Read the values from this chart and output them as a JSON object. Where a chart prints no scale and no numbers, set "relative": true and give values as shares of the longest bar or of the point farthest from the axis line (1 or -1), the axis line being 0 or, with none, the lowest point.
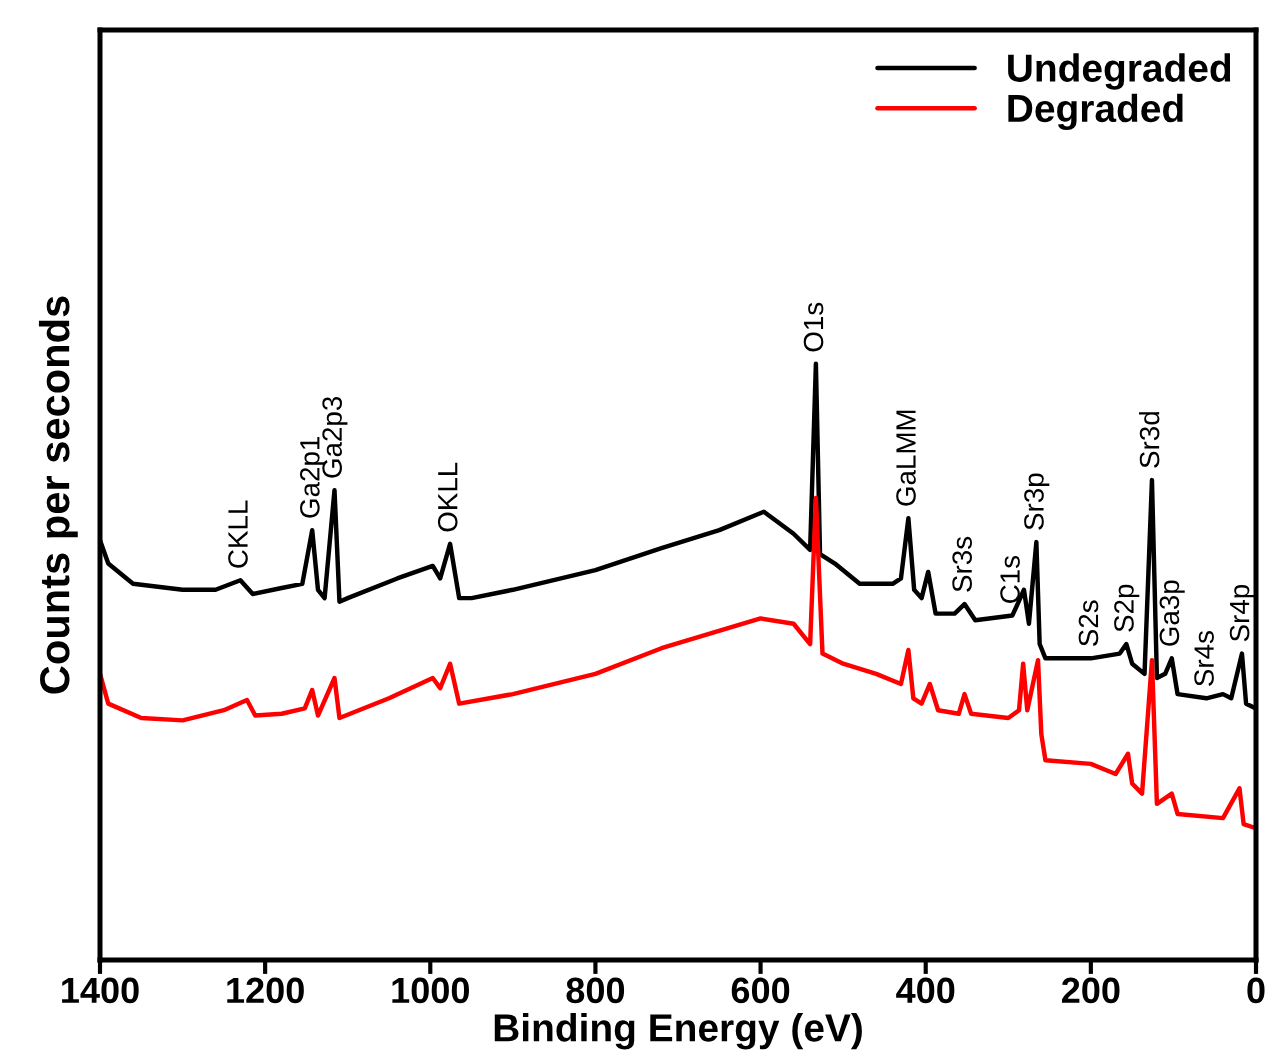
{
  "chart_data": {
    "type": "line",
    "relative": true,
    "xlabel": "Binding Energy (eV)",
    "ylabel": "Counts per seconds",
    "xlim": [
      1400,
      0
    ],
    "xticks": [
      1400,
      1200,
      1000,
      800,
      600,
      400,
      200,
      0
    ],
    "legend": "top right",
    "grid": false,
    "series": [
      {
        "name": "Undegraded",
        "color": "#000000",
        "x": [
          1400,
          1390,
          1360,
          1300,
          1260,
          1230,
          1215,
          1180,
          1155,
          1143,
          1136,
          1128,
          1116,
          1110,
          1100,
          1040,
          997,
          988,
          976,
          965,
          950,
          900,
          800,
          720,
          650,
          596,
          560,
          540,
          533,
          528,
          510,
          480,
          440,
          430,
          421,
          414,
          405,
          397,
          388,
          365,
          353,
          340,
          295,
          281,
          275,
          266,
          262,
          255,
          200,
          165,
          157,
          150,
          135,
          126,
          120,
          110,
          102,
          95,
          60,
          40,
          30,
          17,
          12,
          0
        ],
        "values": [
          0.704,
          0.665,
          0.631,
          0.621,
          0.621,
          0.637,
          0.614,
          0.624,
          0.631,
          0.721,
          0.621,
          0.607,
          0.788,
          0.601,
          0.607,
          0.64,
          0.661,
          0.64,
          0.698,
          0.607,
          0.607,
          0.621,
          0.654,
          0.691,
          0.721,
          0.752,
          0.715,
          0.688,
          1.0,
          0.681,
          0.665,
          0.631,
          0.631,
          0.64,
          0.741,
          0.621,
          0.607,
          0.651,
          0.581,
          0.581,
          0.597,
          0.57,
          0.578,
          0.621,
          0.564,
          0.701,
          0.53,
          0.506,
          0.506,
          0.514,
          0.53,
          0.497,
          0.48,
          0.805,
          0.473,
          0.48,
          0.506,
          0.446,
          0.439,
          0.446,
          0.439,
          0.514,
          0.43,
          0.422
        ]
      },
      {
        "name": "Degraded",
        "color": "#ff0000",
        "x": [
          1400,
          1390,
          1350,
          1300,
          1250,
          1222,
          1212,
          1180,
          1152,
          1143,
          1136,
          1116,
          1110,
          1050,
          997,
          988,
          976,
          965,
          900,
          800,
          720,
          600,
          560,
          540,
          533,
          525,
          500,
          460,
          430,
          421,
          415,
          405,
          395,
          385,
          360,
          353,
          345,
          300,
          287,
          282,
          277,
          264,
          260,
          255,
          200,
          170,
          155,
          150,
          138,
          126,
          120,
          102,
          95,
          40,
          20,
          15,
          0
        ],
        "values": [
          0.48,
          0.43,
          0.406,
          0.402,
          0.419,
          0.436,
          0.41,
          0.413,
          0.422,
          0.453,
          0.41,
          0.473,
          0.406,
          0.439,
          0.473,
          0.456,
          0.497,
          0.43,
          0.446,
          0.48,
          0.523,
          0.573,
          0.564,
          0.53,
          0.775,
          0.514,
          0.497,
          0.48,
          0.463,
          0.52,
          0.439,
          0.43,
          0.463,
          0.419,
          0.413,
          0.446,
          0.413,
          0.406,
          0.419,
          0.497,
          0.419,
          0.503,
          0.379,
          0.335,
          0.329,
          0.312,
          0.346,
          0.296,
          0.279,
          0.503,
          0.262,
          0.279,
          0.245,
          0.238,
          0.288,
          0.228,
          0.221
        ]
      }
    ],
    "annotations": [
      {
        "text": "CKLL",
        "x": 1230,
        "y": 0.637
      },
      {
        "text": "Ga2p1",
        "x": 1143,
        "y": 0.721
      },
      {
        "text": "Ga2p3",
        "x": 1116,
        "y": 0.788
      },
      {
        "text": "OKLL",
        "x": 976,
        "y": 0.698
      },
      {
        "text": "O1s",
        "x": 533,
        "y": 1.0
      },
      {
        "text": "GaLMM",
        "x": 421,
        "y": 0.741
      },
      {
        "text": "Sr3s",
        "x": 353,
        "y": 0.597
      },
      {
        "text": "C1s",
        "x": 295,
        "y": 0.578
      },
      {
        "text": "Sr3p",
        "x": 266,
        "y": 0.701
      },
      {
        "text": "S2s",
        "x": 200,
        "y": 0.506
      },
      {
        "text": "S2p",
        "x": 157,
        "y": 0.53
      },
      {
        "text": "Sr3d",
        "x": 126,
        "y": 0.805
      },
      {
        "text": "Ga3p",
        "x": 102,
        "y": 0.506
      },
      {
        "text": "Sr4s",
        "x": 60,
        "y": 0.439
      },
      {
        "text": "Sr4p",
        "x": 17,
        "y": 0.514
      }
    ]
  }
}
